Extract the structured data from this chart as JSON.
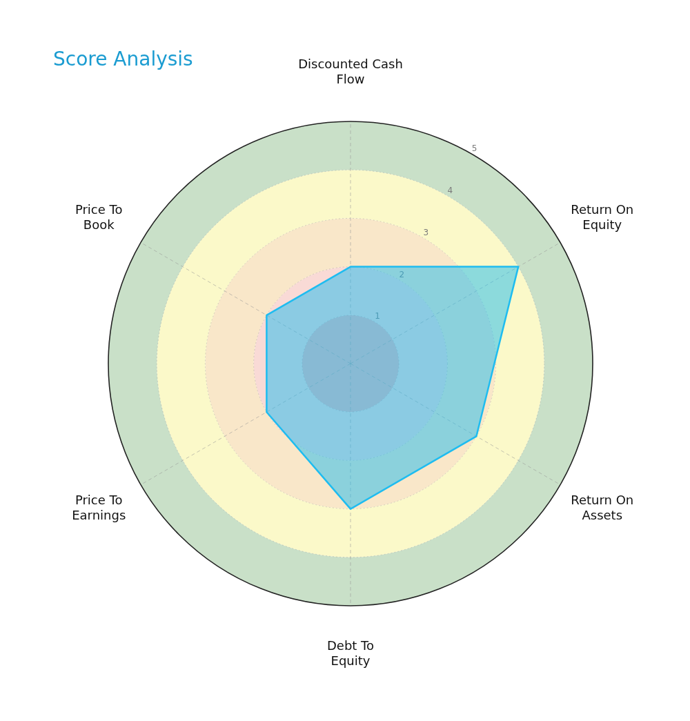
{
  "chart_data": {
    "type": "radar",
    "title": "Score Analysis",
    "categories": [
      "Discounted Cash Flow",
      "Return On Equity",
      "Return On Assets",
      "Debt To Equity",
      "Price To Earnings",
      "Price To Book"
    ],
    "series": [
      {
        "color": "#1ebcf0",
        "values": [
          2,
          4,
          3,
          3,
          2,
          2
        ]
      }
    ],
    "ylim": [
      0,
      5
    ],
    "yticks": [
      1,
      2,
      3,
      4,
      5
    ],
    "grid": true,
    "marker": "none"
  }
}
